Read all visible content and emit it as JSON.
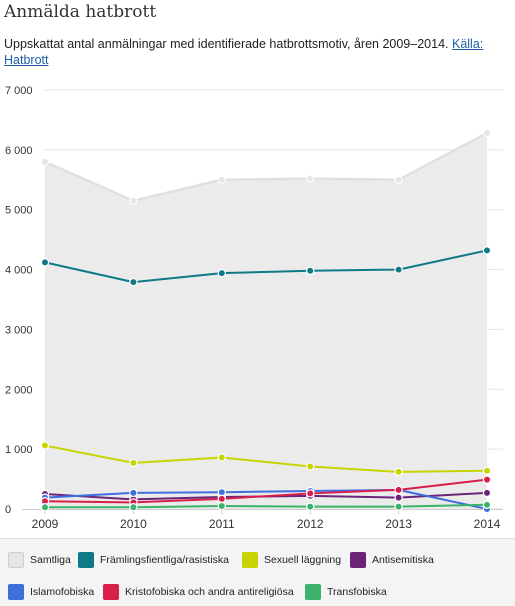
{
  "header": {
    "title": "Anmälda hatbrott",
    "subtitle": "Uppskattat antal anmälningar med identifierade hatbrottsmotiv, åren 2009–2014.",
    "source_link": "Källa: Hatbrott"
  },
  "chart_data": {
    "type": "line",
    "title": "Anmälda hatbrott",
    "x": [
      "2009",
      "2010",
      "2011",
      "2012",
      "2013",
      "2014"
    ],
    "ylim": [
      0,
      7000
    ],
    "yticks": [
      0,
      1000,
      2000,
      3000,
      4000,
      5000,
      6000,
      7000
    ],
    "ytick_labels": [
      "0",
      "1 000",
      "2 000",
      "3 000",
      "4 000",
      "5 000",
      "6 000",
      "7 000"
    ],
    "grid": true,
    "legend_position": "bottom",
    "series": [
      {
        "name": "Samtliga",
        "color": "#e6e6e6",
        "style": "area",
        "values": [
          5800,
          5150,
          5500,
          5520,
          5500,
          6280
        ]
      },
      {
        "name": "Främlingsfientliga/rasistiska",
        "color": "#0e7a86",
        "values": [
          4120,
          3790,
          3940,
          3980,
          4000,
          4320
        ]
      },
      {
        "name": "Sexuell läggning",
        "color": "#c8d400",
        "values": [
          1060,
          770,
          860,
          710,
          620,
          640
        ]
      },
      {
        "name": "Antisemitiska",
        "color": "#6b2478",
        "values": [
          250,
          160,
          200,
          220,
          190,
          270
        ]
      },
      {
        "name": "Islamofobiska",
        "color": "#3f6fdc",
        "values": [
          190,
          270,
          280,
          300,
          320,
          0
        ]
      },
      {
        "name": "Kristofobiska och andra antireligiösa",
        "color": "#d81e4b",
        "values": [
          130,
          110,
          170,
          260,
          320,
          490
        ]
      },
      {
        "name": "Transfobiska",
        "color": "#3cb36a",
        "values": [
          30,
          30,
          50,
          40,
          40,
          70
        ]
      }
    ]
  }
}
